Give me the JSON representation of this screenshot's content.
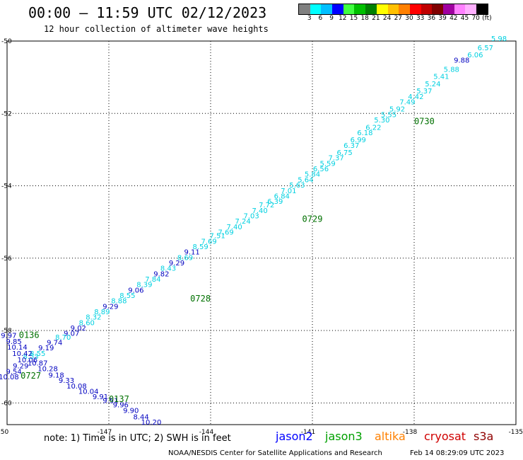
{
  "header": {
    "title": "00:00 – 11:59 UTC 02/12/2023",
    "subtitle": "12 hour collection of altimeter wave heights"
  },
  "color_scale": {
    "labels": [
      "3",
      "6",
      "9",
      "12",
      "15",
      "18",
      "21",
      "24",
      "27",
      "30",
      "33",
      "36",
      "39",
      "42",
      "45",
      "70",
      "(ft)"
    ],
    "colors": [
      "#808080",
      "#00ffff",
      "#00bfff",
      "#0000ff",
      "#40ff40",
      "#00c000",
      "#008000",
      "#ffff00",
      "#ffc000",
      "#ff8000",
      "#ff0000",
      "#c00000",
      "#800000",
      "#a000a0",
      "#ff80ff",
      "#ffb0ff",
      "#000000"
    ]
  },
  "map": {
    "lon_ticks": [
      "-150",
      "-147",
      "-144",
      "-141",
      "-138",
      "-135"
    ],
    "lat_ticks": [
      "-50",
      "-52",
      "-54",
      "-56",
      "-58",
      "-60"
    ],
    "readings": [
      {
        "text": "5.98",
        "lon": -135.5,
        "lat": -50.0,
        "color": "#00d0e0"
      },
      {
        "text": "6.57",
        "lon": -135.9,
        "lat": -50.25,
        "color": "#00d0e0"
      },
      {
        "text": "6.06",
        "lon": -136.2,
        "lat": -50.45,
        "color": "#00d0e0"
      },
      {
        "text": "9.88",
        "lon": -136.6,
        "lat": -50.6,
        "color": "#0000c0"
      },
      {
        "text": "5.88",
        "lon": -136.9,
        "lat": -50.85,
        "color": "#00d0e0"
      },
      {
        "text": "5.41",
        "lon": -137.2,
        "lat": -51.05,
        "color": "#00d0e0"
      },
      {
        "text": "5.24",
        "lon": -137.45,
        "lat": -51.25,
        "color": "#00d0e0"
      },
      {
        "text": "5.37",
        "lon": -137.7,
        "lat": -51.45,
        "color": "#00d0e0"
      },
      {
        "text": "4.42",
        "lon": -137.95,
        "lat": -51.6,
        "color": "#00d0e0"
      },
      {
        "text": "7.49",
        "lon": -138.2,
        "lat": -51.75,
        "color": "#00d0e0"
      },
      {
        "text": "5.92",
        "lon": -138.5,
        "lat": -51.95,
        "color": "#00d0e0"
      },
      {
        "text": "5.55",
        "lon": -138.75,
        "lat": -52.1,
        "color": "#00d0e0"
      },
      {
        "text": "5.30",
        "lon": -138.95,
        "lat": -52.25,
        "color": "#00d0e0"
      },
      {
        "text": "6.22",
        "lon": -139.2,
        "lat": -52.45,
        "color": "#00d0e0"
      },
      {
        "text": "6.18",
        "lon": -139.45,
        "lat": -52.6,
        "color": "#00d0e0"
      },
      {
        "text": "6.99",
        "lon": -139.65,
        "lat": -52.8,
        "color": "#00d0e0"
      },
      {
        "text": "6.37",
        "lon": -139.85,
        "lat": -52.95,
        "color": "#00d0e0"
      },
      {
        "text": "6.75",
        "lon": -140.05,
        "lat": -53.15,
        "color": "#00d0e0"
      },
      {
        "text": "7.37",
        "lon": -140.3,
        "lat": -53.3,
        "color": "#00d0e0"
      },
      {
        "text": "5.59",
        "lon": -140.55,
        "lat": -53.45,
        "color": "#00d0e0"
      },
      {
        "text": "6.56",
        "lon": -140.75,
        "lat": -53.6,
        "color": "#00d0e0"
      },
      {
        "text": "5.84",
        "lon": -141.0,
        "lat": -53.75,
        "color": "#00d0e0"
      },
      {
        "text": "5.64",
        "lon": -141.2,
        "lat": -53.9,
        "color": "#00d0e0"
      },
      {
        "text": "5.63",
        "lon": -141.45,
        "lat": -54.05,
        "color": "#00d0e0"
      },
      {
        "text": "7.01",
        "lon": -141.7,
        "lat": -54.2,
        "color": "#00d0e0"
      },
      {
        "text": "6.84",
        "lon": -141.9,
        "lat": -54.35,
        "color": "#00d0e0"
      },
      {
        "text": "6.39",
        "lon": -142.1,
        "lat": -54.5,
        "color": "#00d0e0"
      },
      {
        "text": "7.72",
        "lon": -142.35,
        "lat": -54.6,
        "color": "#00d0e0"
      },
      {
        "text": "7.40",
        "lon": -142.55,
        "lat": -54.75,
        "color": "#00d0e0"
      },
      {
        "text": "7.03",
        "lon": -142.8,
        "lat": -54.9,
        "color": "#00d0e0"
      },
      {
        "text": "7.24",
        "lon": -143.05,
        "lat": -55.05,
        "color": "#00d0e0"
      },
      {
        "text": "7.40",
        "lon": -143.3,
        "lat": -55.2,
        "color": "#00d0e0"
      },
      {
        "text": "7.69",
        "lon": -143.55,
        "lat": -55.35,
        "color": "#00d0e0"
      },
      {
        "text": "7.51",
        "lon": -143.8,
        "lat": -55.45,
        "color": "#00d0e0"
      },
      {
        "text": "7.69",
        "lon": -144.05,
        "lat": -55.6,
        "color": "#00d0e0"
      },
      {
        "text": "8.59",
        "lon": -144.3,
        "lat": -55.75,
        "color": "#00d0e0"
      },
      {
        "text": "9.11",
        "lon": -144.55,
        "lat": -55.9,
        "color": "#0000c0"
      },
      {
        "text": "8.69",
        "lon": -144.75,
        "lat": -56.05,
        "color": "#00d0e0"
      },
      {
        "text": "9.29",
        "lon": -145.0,
        "lat": -56.2,
        "color": "#0000c0"
      },
      {
        "text": "8.43",
        "lon": -145.25,
        "lat": -56.35,
        "color": "#00d0e0"
      },
      {
        "text": "9.82",
        "lon": -145.45,
        "lat": -56.5,
        "color": "#0000c0"
      },
      {
        "text": "7.84",
        "lon": -145.7,
        "lat": -56.65,
        "color": "#00d0e0"
      },
      {
        "text": "8.39",
        "lon": -145.95,
        "lat": -56.8,
        "color": "#00d0e0"
      },
      {
        "text": "9.06",
        "lon": -146.2,
        "lat": -56.95,
        "color": "#0000c0"
      },
      {
        "text": "8.55",
        "lon": -146.45,
        "lat": -57.1,
        "color": "#00d0e0"
      },
      {
        "text": "8.88",
        "lon": -146.7,
        "lat": -57.25,
        "color": "#00d0e0"
      },
      {
        "text": "9.29",
        "lon": -146.95,
        "lat": -57.4,
        "color": "#0000c0"
      },
      {
        "text": "8.89",
        "lon": -147.2,
        "lat": -57.55,
        "color": "#00d0e0"
      },
      {
        "text": "8.32",
        "lon": -147.45,
        "lat": -57.7,
        "color": "#00d0e0"
      },
      {
        "text": "8.60",
        "lon": -147.65,
        "lat": -57.85,
        "color": "#00d0e0"
      },
      {
        "text": "9.02",
        "lon": -147.9,
        "lat": -58.0,
        "color": "#0000c0"
      },
      {
        "text": "9.07",
        "lon": -148.1,
        "lat": -58.15,
        "color": "#0000c0"
      },
      {
        "text": "8.70",
        "lon": -148.35,
        "lat": -58.25,
        "color": "#00d0e0"
      },
      {
        "text": "9.74",
        "lon": -148.6,
        "lat": -58.4,
        "color": "#0000c0"
      },
      {
        "text": "9.19",
        "lon": -148.85,
        "lat": -58.55,
        "color": "#0000c0"
      },
      {
        "text": "8.55",
        "lon": -149.1,
        "lat": -58.7,
        "color": "#00d0e0"
      },
      {
        "text": "8.53",
        "lon": -149.3,
        "lat": -58.78,
        "color": "#00d0e0"
      },
      {
        "text": "9.97",
        "lon": -149.95,
        "lat": -58.2,
        "color": "#0000c0"
      },
      {
        "text": "9.85",
        "lon": -149.8,
        "lat": -58.37,
        "color": "#0000c0"
      },
      {
        "text": "10.14",
        "lon": -149.7,
        "lat": -58.53,
        "color": "#0000c0"
      },
      {
        "text": "10.42",
        "lon": -149.55,
        "lat": -58.7,
        "color": "#0000c0"
      },
      {
        "text": "10.06",
        "lon": -149.4,
        "lat": -58.88,
        "color": "#0000c0"
      },
      {
        "text": "10.87",
        "lon": -149.1,
        "lat": -58.97,
        "color": "#0000c0"
      },
      {
        "text": "9.29",
        "lon": -149.6,
        "lat": -59.05,
        "color": "#0000c0"
      },
      {
        "text": "10.28",
        "lon": -148.8,
        "lat": -59.12,
        "color": "#0000c0"
      },
      {
        "text": "9.54",
        "lon": -149.8,
        "lat": -59.2,
        "color": "#0000c0"
      },
      {
        "text": "9.18",
        "lon": -148.55,
        "lat": -59.3,
        "color": "#0000c0"
      },
      {
        "text": "10.08",
        "lon": -149.95,
        "lat": -59.35,
        "color": "#0000c0"
      },
      {
        "text": "9.33",
        "lon": -148.25,
        "lat": -59.45,
        "color": "#0000c0"
      },
      {
        "text": "10.08",
        "lon": -147.95,
        "lat": -59.6,
        "color": "#0000c0"
      },
      {
        "text": "10.04",
        "lon": -147.6,
        "lat": -59.75,
        "color": "#0000c0"
      },
      {
        "text": "9.91",
        "lon": -147.25,
        "lat": -59.9,
        "color": "#0000c0"
      },
      {
        "text": "9.51",
        "lon": -146.95,
        "lat": -60.0,
        "color": "#0000c0"
      },
      {
        "text": "9.96",
        "lon": -146.65,
        "lat": -60.12,
        "color": "#0000c0"
      },
      {
        "text": "9.90",
        "lon": -146.35,
        "lat": -60.28,
        "color": "#0000c0"
      },
      {
        "text": "8.44",
        "lon": -146.05,
        "lat": -60.45,
        "color": "#0000c0"
      },
      {
        "text": "10.20",
        "lon": -145.75,
        "lat": -60.6,
        "color": "#0000c0"
      }
    ],
    "time_labels": [
      {
        "text": "0730",
        "lon": -137.7,
        "lat": -52.3,
        "color": "#007000"
      },
      {
        "text": "0729",
        "lon": -141.0,
        "lat": -55.0,
        "color": "#007000"
      },
      {
        "text": "0728",
        "lon": -144.3,
        "lat": -57.2,
        "color": "#007000"
      },
      {
        "text": "0136",
        "lon": -149.35,
        "lat": -58.2,
        "color": "#007000"
      },
      {
        "text": "0727",
        "lon": -149.3,
        "lat": -59.33,
        "color": "#007000"
      },
      {
        "text": "0137",
        "lon": -146.7,
        "lat": -59.97,
        "color": "#007000"
      }
    ]
  },
  "footer": {
    "note": "note:  1) Time is in UTC;  2) SWH is in feet",
    "satellites": [
      {
        "name": "jason2",
        "color": "#0000ff"
      },
      {
        "name": "jason3",
        "color": "#00a000"
      },
      {
        "name": "altika",
        "color": "#ff8000"
      },
      {
        "name": "cryosat",
        "color": "#d00000"
      },
      {
        "name": "s3a",
        "color": "#900000"
      }
    ],
    "credit": "NOAA/NESDIS Center for Satellite Applications and Research",
    "timestamp": "Feb 14 08:29:09 UTC 2023"
  }
}
